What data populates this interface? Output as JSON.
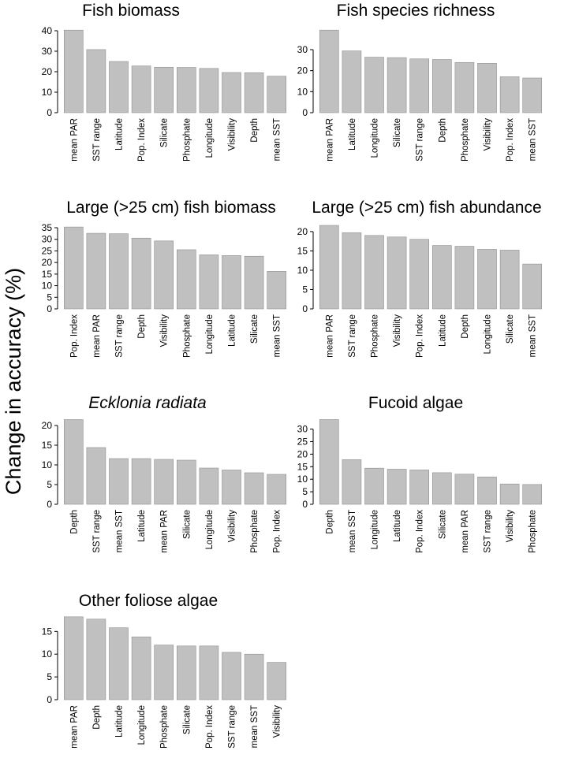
{
  "figure": {
    "ylabel": "Change in accuracy (%)"
  },
  "chart_data": [
    {
      "type": "bar",
      "title": "Fish biomass",
      "categories": [
        "mean PAR",
        "SST range",
        "Latitude",
        "Pop. Index",
        "Silicate",
        "Phosphate",
        "Longitude",
        "Visibility",
        "Depth",
        "mean SST"
      ],
      "values": [
        40.3,
        30.8,
        25.0,
        22.8,
        22.2,
        22.1,
        21.6,
        19.6,
        19.5,
        17.8
      ],
      "ylim": [
        0,
        40
      ],
      "yticks": [
        0,
        10,
        20,
        30,
        40
      ]
    },
    {
      "type": "bar",
      "title": "Fish species  richness",
      "categories": [
        "mean PAR",
        "Latitude",
        "Longitude",
        "Silicate",
        "SST range",
        "Depth",
        "Phosphate",
        "Visibility",
        "Pop. Index",
        "mean SST"
      ],
      "values": [
        39.3,
        29.4,
        26.4,
        26.2,
        25.6,
        25.3,
        23.9,
        23.5,
        17.1,
        16.5
      ],
      "ylim": [
        0,
        39
      ],
      "yticks": [
        0,
        10,
        20,
        30
      ]
    },
    {
      "type": "bar",
      "title": "Large (>25 cm) fish  biomass",
      "categories": [
        "Pop. Index",
        "mean PAR",
        "SST range",
        "Depth",
        "Visibility",
        "Phosphate",
        "Longitude",
        "Latitude",
        "Silicate",
        "mean SST"
      ],
      "values": [
        35.3,
        32.6,
        32.4,
        30.5,
        29.3,
        25.5,
        23.3,
        23.0,
        22.7,
        16.2
      ],
      "ylim": [
        0,
        35
      ],
      "yticks": [
        0,
        5,
        10,
        15,
        20,
        25,
        30,
        35
      ]
    },
    {
      "type": "bar",
      "title": "Large (>25 cm) fish  abundance",
      "categories": [
        "mean PAR",
        "SST range",
        "Phosphate",
        "Visibility",
        "Pop. Index",
        "Latitude",
        "Depth",
        "Longitude",
        "Silicate",
        "mean SST"
      ],
      "values": [
        21.6,
        19.7,
        19.0,
        18.6,
        18.0,
        16.4,
        16.2,
        15.4,
        15.2,
        11.6
      ],
      "ylim": [
        0,
        21
      ],
      "yticks": [
        0,
        5,
        10,
        15,
        20
      ]
    },
    {
      "type": "bar",
      "title": "Ecklonia radiata",
      "title_italic": true,
      "categories": [
        "Depth",
        "SST range",
        "mean SST",
        "Latitude",
        "mean PAR",
        "Silicate",
        "Longitude",
        "Visibility",
        "Phosphate",
        "Pop. Index"
      ],
      "values": [
        21.5,
        14.4,
        11.6,
        11.6,
        11.4,
        11.2,
        9.2,
        8.7,
        8.0,
        7.6
      ],
      "ylim": [
        0,
        21
      ],
      "yticks": [
        0,
        5,
        10,
        15,
        20
      ]
    },
    {
      "type": "bar",
      "title": "Fucoid algae",
      "categories": [
        "Depth",
        "mean SST",
        "Longitude",
        "Latitude",
        "Pop. Index",
        "Silicate",
        "mean PAR",
        "SST range",
        "Visibility",
        "Phosphate"
      ],
      "values": [
        33.8,
        17.8,
        14.4,
        14.0,
        13.7,
        12.6,
        12.0,
        10.9,
        8.1,
        7.9
      ],
      "ylim": [
        0,
        33
      ],
      "yticks": [
        0,
        5,
        10,
        15,
        20,
        25,
        30
      ]
    },
    {
      "type": "bar",
      "title": "Other foliose algae",
      "categories": [
        "mean PAR",
        "Depth",
        "Latitude",
        "Longitude",
        "Phosphate",
        "Silicate",
        "Pop. Index",
        "SST range",
        "mean SST",
        "Visibility"
      ],
      "values": [
        18.2,
        17.7,
        15.8,
        13.8,
        12.0,
        11.8,
        11.8,
        10.4,
        10.0,
        8.2
      ],
      "ylim": [
        0,
        18
      ],
      "yticks": [
        0,
        5,
        10,
        15
      ]
    }
  ]
}
